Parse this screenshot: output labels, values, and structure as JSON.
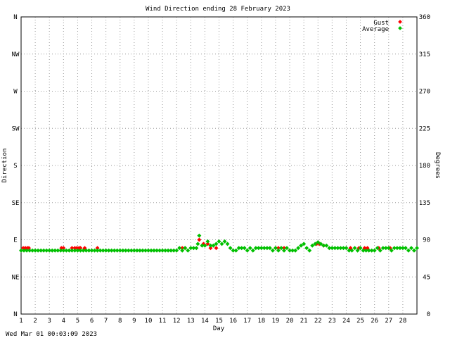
{
  "chart_data": {
    "type": "scatter",
    "title": "Wind Direction ending 28 February 2023",
    "xlabel": "Day",
    "ylabel_left": "Direction",
    "ylabel_right": "Degrees",
    "footer": "Wed Mar 01 00:03:09 2023",
    "xlim": [
      1,
      29
    ],
    "ylim": [
      0,
      360
    ],
    "x_ticks": [
      "1",
      "2",
      "3",
      "4",
      "5",
      "6",
      "7",
      "8",
      "9",
      "10",
      "11",
      "12",
      "13",
      "14",
      "15",
      "16",
      "17",
      "18",
      "19",
      "20",
      "21",
      "22",
      "23",
      "24",
      "25",
      "26",
      "27",
      "28"
    ],
    "y_left_ticks": [
      {
        "value": 0,
        "label": "N"
      },
      {
        "value": 45,
        "label": "NE"
      },
      {
        "value": 90,
        "label": "E"
      },
      {
        "value": 135,
        "label": "SE"
      },
      {
        "value": 180,
        "label": "S"
      },
      {
        "value": 225,
        "label": "SW"
      },
      {
        "value": 270,
        "label": "W"
      },
      {
        "value": 315,
        "label": "NW"
      },
      {
        "value": 360,
        "label": "N"
      }
    ],
    "y_right_ticks": [
      "0",
      "45",
      "90",
      "135",
      "180",
      "225",
      "270",
      "315",
      "360"
    ],
    "grid": true,
    "legend_position": "top-right",
    "colors": {
      "Gust": "#ff0000",
      "Average": "#00c000"
    },
    "series": [
      {
        "name": "Gust",
        "points": [
          [
            1.15,
            80
          ],
          [
            1.3,
            80
          ],
          [
            1.45,
            80
          ],
          [
            1.55,
            80
          ],
          [
            3.85,
            80
          ],
          [
            4.0,
            80
          ],
          [
            4.6,
            80
          ],
          [
            4.8,
            80
          ],
          [
            4.95,
            80
          ],
          [
            5.1,
            80
          ],
          [
            5.2,
            80
          ],
          [
            5.5,
            80
          ],
          [
            6.4,
            80
          ],
          [
            12.4,
            80
          ],
          [
            12.6,
            80
          ],
          [
            13.6,
            90
          ],
          [
            13.9,
            85
          ],
          [
            14.2,
            85
          ],
          [
            14.4,
            80
          ],
          [
            14.8,
            80
          ],
          [
            19.0,
            80
          ],
          [
            19.2,
            80
          ],
          [
            19.4,
            80
          ],
          [
            19.6,
            80
          ],
          [
            21.9,
            85
          ],
          [
            22.1,
            85
          ],
          [
            22.4,
            83
          ],
          [
            24.3,
            80
          ],
          [
            24.9,
            80
          ],
          [
            25.3,
            80
          ],
          [
            25.5,
            80
          ],
          [
            26.3,
            80
          ],
          [
            27.1,
            80
          ]
        ]
      },
      {
        "name": "Average",
        "points": [
          [
            1.0,
            77
          ],
          [
            1.2,
            77
          ],
          [
            1.4,
            77
          ],
          [
            1.6,
            77
          ],
          [
            1.8,
            77
          ],
          [
            2.0,
            77
          ],
          [
            2.2,
            77
          ],
          [
            2.4,
            77
          ],
          [
            2.6,
            77
          ],
          [
            2.8,
            77
          ],
          [
            3.0,
            77
          ],
          [
            3.2,
            77
          ],
          [
            3.4,
            77
          ],
          [
            3.6,
            77
          ],
          [
            3.8,
            77
          ],
          [
            4.0,
            77
          ],
          [
            4.2,
            77
          ],
          [
            4.4,
            77
          ],
          [
            4.6,
            77
          ],
          [
            4.8,
            77
          ],
          [
            5.0,
            77
          ],
          [
            5.2,
            77
          ],
          [
            5.4,
            77
          ],
          [
            5.6,
            77
          ],
          [
            5.8,
            77
          ],
          [
            6.0,
            77
          ],
          [
            6.2,
            77
          ],
          [
            6.4,
            77
          ],
          [
            6.6,
            77
          ],
          [
            6.8,
            77
          ],
          [
            7.0,
            77
          ],
          [
            7.2,
            77
          ],
          [
            7.4,
            77
          ],
          [
            7.6,
            77
          ],
          [
            7.8,
            77
          ],
          [
            8.0,
            77
          ],
          [
            8.2,
            77
          ],
          [
            8.4,
            77
          ],
          [
            8.6,
            77
          ],
          [
            8.8,
            77
          ],
          [
            9.0,
            77
          ],
          [
            9.2,
            77
          ],
          [
            9.4,
            77
          ],
          [
            9.6,
            77
          ],
          [
            9.8,
            77
          ],
          [
            10.0,
            77
          ],
          [
            10.2,
            77
          ],
          [
            10.4,
            77
          ],
          [
            10.6,
            77
          ],
          [
            10.8,
            77
          ],
          [
            11.0,
            77
          ],
          [
            11.2,
            77
          ],
          [
            11.4,
            77
          ],
          [
            11.6,
            77
          ],
          [
            11.8,
            77
          ],
          [
            12.0,
            77
          ],
          [
            12.2,
            80
          ],
          [
            12.4,
            77
          ],
          [
            12.6,
            80
          ],
          [
            12.8,
            77
          ],
          [
            13.0,
            80
          ],
          [
            13.2,
            80
          ],
          [
            13.4,
            80
          ],
          [
            13.5,
            85
          ],
          [
            13.6,
            95
          ],
          [
            13.8,
            83
          ],
          [
            14.0,
            83
          ],
          [
            14.2,
            88
          ],
          [
            14.4,
            83
          ],
          [
            14.6,
            83
          ],
          [
            14.8,
            85
          ],
          [
            15.0,
            88
          ],
          [
            15.2,
            85
          ],
          [
            15.4,
            88
          ],
          [
            15.6,
            85
          ],
          [
            15.8,
            80
          ],
          [
            16.0,
            77
          ],
          [
            16.2,
            77
          ],
          [
            16.4,
            80
          ],
          [
            16.6,
            80
          ],
          [
            16.8,
            80
          ],
          [
            17.0,
            77
          ],
          [
            17.2,
            80
          ],
          [
            17.4,
            77
          ],
          [
            17.6,
            80
          ],
          [
            17.8,
            80
          ],
          [
            18.0,
            80
          ],
          [
            18.2,
            80
          ],
          [
            18.4,
            80
          ],
          [
            18.6,
            80
          ],
          [
            18.8,
            77
          ],
          [
            19.0,
            80
          ],
          [
            19.2,
            77
          ],
          [
            19.4,
            80
          ],
          [
            19.6,
            77
          ],
          [
            19.8,
            80
          ],
          [
            20.0,
            77
          ],
          [
            20.2,
            77
          ],
          [
            20.4,
            77
          ],
          [
            20.6,
            80
          ],
          [
            20.8,
            83
          ],
          [
            21.0,
            85
          ],
          [
            21.2,
            80
          ],
          [
            21.4,
            77
          ],
          [
            21.6,
            83
          ],
          [
            21.8,
            85
          ],
          [
            22.0,
            87
          ],
          [
            22.2,
            85
          ],
          [
            22.4,
            83
          ],
          [
            22.6,
            83
          ],
          [
            22.8,
            80
          ],
          [
            23.0,
            80
          ],
          [
            23.2,
            80
          ],
          [
            23.4,
            80
          ],
          [
            23.6,
            80
          ],
          [
            23.8,
            80
          ],
          [
            24.0,
            80
          ],
          [
            24.2,
            77
          ],
          [
            24.4,
            77
          ],
          [
            24.6,
            80
          ],
          [
            24.8,
            77
          ],
          [
            25.0,
            80
          ],
          [
            25.2,
            77
          ],
          [
            25.4,
            77
          ],
          [
            25.6,
            77
          ],
          [
            25.8,
            77
          ],
          [
            26.0,
            77
          ],
          [
            26.2,
            80
          ],
          [
            26.4,
            77
          ],
          [
            26.6,
            80
          ],
          [
            26.8,
            80
          ],
          [
            27.0,
            80
          ],
          [
            27.2,
            77
          ],
          [
            27.4,
            80
          ],
          [
            27.6,
            80
          ],
          [
            27.8,
            80
          ],
          [
            28.0,
            80
          ],
          [
            28.2,
            80
          ],
          [
            28.4,
            77
          ],
          [
            28.6,
            80
          ],
          [
            28.8,
            77
          ],
          [
            29.0,
            80
          ]
        ]
      }
    ]
  }
}
